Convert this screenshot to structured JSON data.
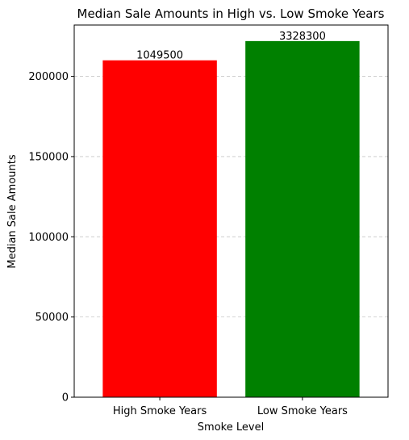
{
  "chart_data": {
    "type": "bar",
    "title": "Median Sale Amounts in High vs. Low Smoke Years",
    "xlabel": "Smoke Level",
    "ylabel": "Median Sale Amounts",
    "categories": [
      "High Smoke Years",
      "Low Smoke Years"
    ],
    "values": [
      210000,
      222000
    ],
    "data_labels": [
      "1049500",
      "3328300"
    ],
    "colors": [
      "#ff0000",
      "#008000"
    ],
    "ylim": [
      0,
      232000
    ],
    "yticks": [
      0,
      50000,
      100000,
      150000,
      200000
    ],
    "ytick_labels": [
      "0",
      "50000",
      "100000",
      "150000",
      "200000"
    ],
    "grid": "y-dashed"
  }
}
